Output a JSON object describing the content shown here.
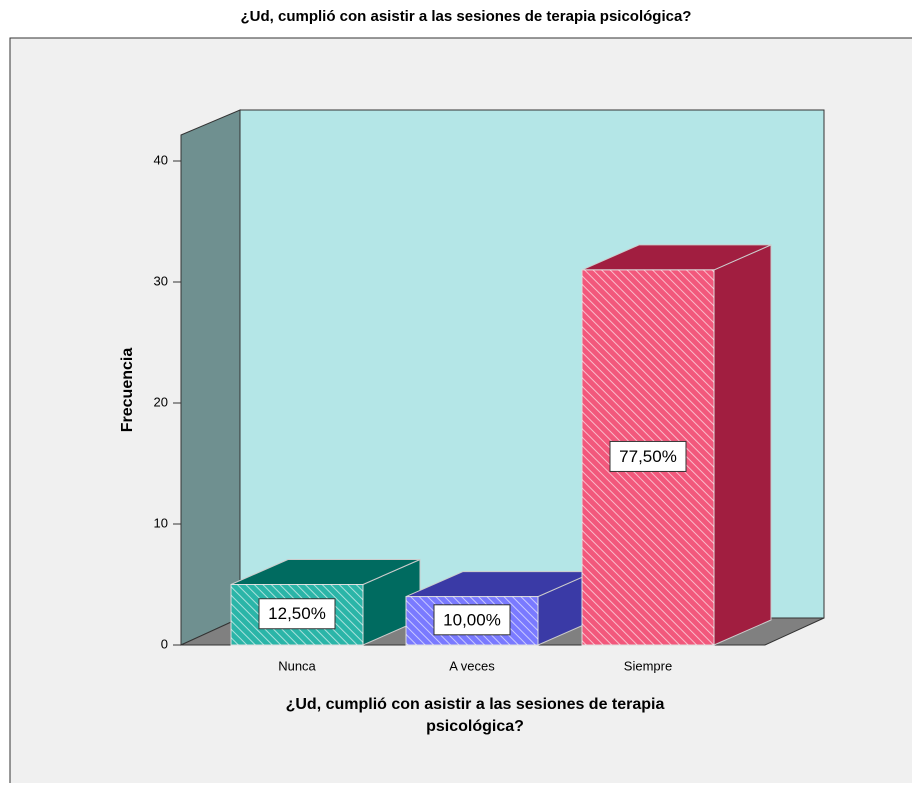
{
  "chart_data": {
    "type": "bar3d",
    "title": "¿Ud, cumplió con asistir a las sesiones de terapia psicológica?",
    "x_label": [
      "¿Ud, cumplió con asistir a las sesiones de terapia",
      "psicológica?"
    ],
    "y_label": "Frecuencia",
    "categories": [
      "Nunca",
      "A veces",
      "Siempre"
    ],
    "values": [
      5,
      4,
      31
    ],
    "percent_labels": [
      "12,50%",
      "10,00%",
      "77,50%"
    ],
    "colors": [
      "#2bb5a8",
      "#7a7aff",
      "#f2587c"
    ],
    "side_colors": [
      "#006b60",
      "#3a3aa6",
      "#a11e40"
    ],
    "ylim": [
      0,
      40
    ],
    "yticks": [
      0,
      10,
      20,
      30,
      40
    ]
  }
}
